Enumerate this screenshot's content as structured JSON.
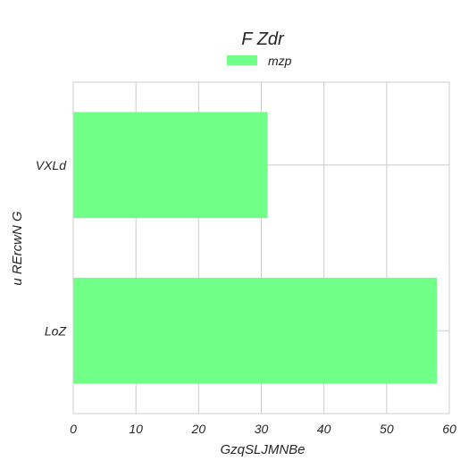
{
  "chart_data": {
    "type": "bar",
    "orientation": "horizontal",
    "title": "F Zdr",
    "xlabel": "GzqSLJMNBe",
    "ylabel": "u RErcwN  G",
    "categories": [
      "LoZ",
      "VXLd"
    ],
    "series": [
      {
        "name": "mzp",
        "values": [
          58,
          31
        ],
        "color": "#70ff88"
      }
    ],
    "xlim": [
      0,
      60
    ],
    "xticks": [
      0,
      10,
      20,
      30,
      40,
      50,
      60
    ],
    "grid": true,
    "legend": "top-center"
  }
}
